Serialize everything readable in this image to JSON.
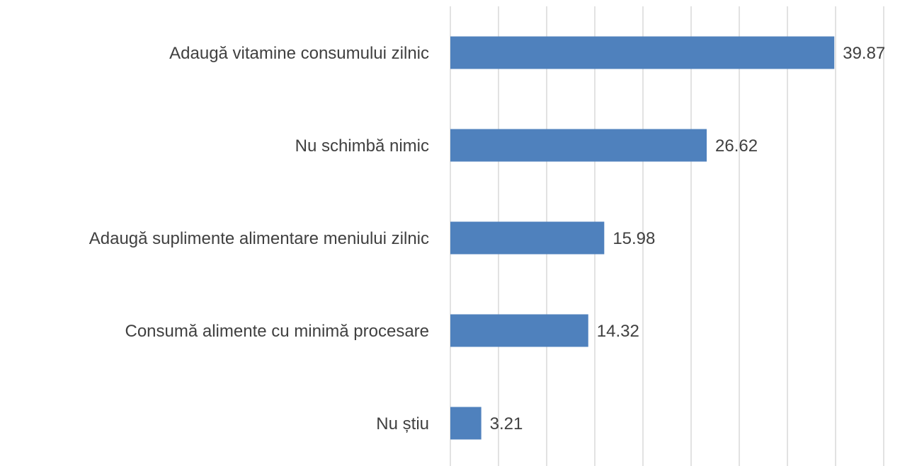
{
  "chart_data": {
    "type": "bar",
    "orientation": "horizontal",
    "categories": [
      "Adaugă vitamine consumului zilnic",
      "Nu schimbă nimic",
      "Adaugă suplimente alimentare meniului zilnic",
      "Consumă alimente cu minimă procesare",
      "Nu știu"
    ],
    "values": [
      39.87,
      26.62,
      15.98,
      14.32,
      3.21
    ],
    "color": "#4f81bd",
    "xlim": [
      0,
      45
    ],
    "xticks": [
      0,
      5,
      10,
      15,
      20,
      25,
      30,
      35,
      40,
      45
    ],
    "grid": true
  }
}
